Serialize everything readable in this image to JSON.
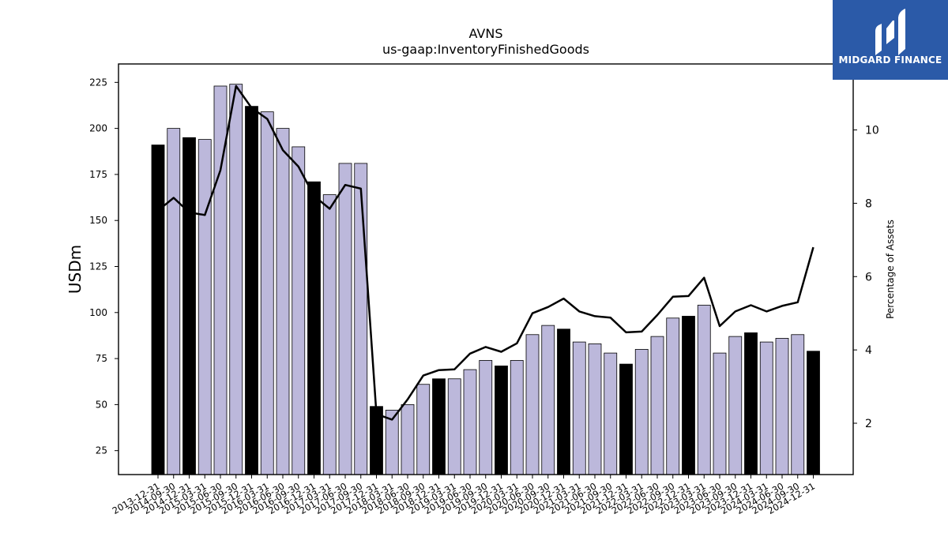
{
  "brand": {
    "name": "MIDGARD FINANCE",
    "color": "#2b5aa8"
  },
  "chart_data": {
    "type": "bar",
    "title": "AVNS",
    "subtitle": "us-gaap:InventoryFinishedGoods",
    "ylabel_left": "USDm",
    "ylabel_right": "Percentage of Assets",
    "ylim_left": [
      12,
      235
    ],
    "ylim_right": [
      0.6,
      11.8
    ],
    "yticks_left": [
      25,
      50,
      75,
      100,
      125,
      150,
      175,
      200,
      225
    ],
    "yticks_right": [
      2,
      4,
      6,
      8,
      10
    ],
    "colors": {
      "annual_bar": "#000000",
      "quarter_bar": "#bcb8db",
      "line": "#000000"
    },
    "categories": [
      "2013-12-31",
      "2014-09-30",
      "2014-12-31",
      "2015-03-31",
      "2015-06-30",
      "2015-09-30",
      "2015-12-31",
      "2016-03-31",
      "2016-06-30",
      "2016-09-30",
      "2016-12-31",
      "2017-03-31",
      "2017-06-30",
      "2017-09-30",
      "2017-12-31",
      "2018-03-31",
      "2018-06-30",
      "2018-09-30",
      "2018-12-31",
      "2019-03-31",
      "2019-06-30",
      "2019-09-30",
      "2019-12-31",
      "2020-03-31",
      "2020-06-30",
      "2020-09-30",
      "2020-12-31",
      "2021-03-31",
      "2021-06-30",
      "2021-09-30",
      "2021-12-31",
      "2022-03-31",
      "2022-06-30",
      "2022-09-30",
      "2022-12-31",
      "2023-03-31",
      "2023-06-30",
      "2023-09-30",
      "2023-12-31",
      "2024-03-31",
      "2024-06-30",
      "2024-09-30",
      "2024-12-31"
    ],
    "series": [
      {
        "kind": "bar",
        "values": [
          191,
          200,
          195,
          194,
          223,
          224,
          212,
          209,
          200,
          190,
          171,
          164,
          181,
          181,
          49,
          47,
          50,
          61,
          64,
          64,
          69,
          74,
          71,
          74,
          88,
          93,
          91,
          84,
          83,
          78,
          72,
          80,
          87,
          97,
          98,
          104,
          78,
          87,
          89,
          84,
          86,
          88,
          79
        ],
        "annual": [
          true,
          false,
          true,
          false,
          false,
          false,
          true,
          false,
          false,
          false,
          true,
          false,
          false,
          false,
          true,
          false,
          false,
          false,
          true,
          false,
          false,
          false,
          true,
          false,
          false,
          false,
          true,
          false,
          false,
          false,
          true,
          false,
          false,
          false,
          true,
          false,
          false,
          false,
          true,
          false,
          false,
          false,
          true
        ]
      },
      {
        "kind": "line",
        "axis": "right",
        "values": [
          7.8,
          8.15,
          7.75,
          7.68,
          8.9,
          11.2,
          10.6,
          10.3,
          9.45,
          9.0,
          8.2,
          7.85,
          8.5,
          8.4,
          2.25,
          2.1,
          2.65,
          3.3,
          3.45,
          3.47,
          3.9,
          4.08,
          3.95,
          4.18,
          5.0,
          5.17,
          5.4,
          5.05,
          4.92,
          4.88,
          4.48,
          4.5,
          4.95,
          5.45,
          5.47,
          5.97,
          4.65,
          5.05,
          5.22,
          5.05,
          5.2,
          5.3,
          6.8
        ]
      }
    ]
  }
}
